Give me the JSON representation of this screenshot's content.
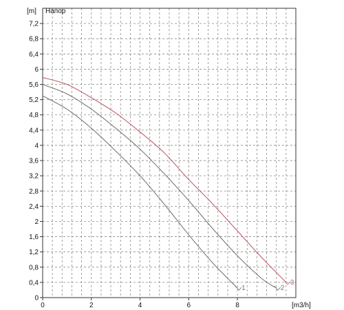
{
  "chart_data": {
    "type": "line",
    "title": "Напор",
    "ylabel": "[m]",
    "xlabel": "[m3/h]",
    "xlim": [
      0,
      10.4
    ],
    "ylim": [
      0,
      7.6
    ],
    "x_ticks": [
      0,
      2,
      4,
      6,
      8
    ],
    "x_tick_labels": [
      "0",
      "2",
      "4",
      "6",
      "8"
    ],
    "x_grid_step": 0.4,
    "y_ticks": [
      0,
      0.4,
      0.8,
      1.2,
      1.6,
      2,
      2.4,
      2.8,
      3.2,
      3.6,
      4,
      4.4,
      4.8,
      5.2,
      5.6,
      6,
      6.4,
      6.8,
      7.2
    ],
    "y_tick_labels": [
      "0",
      "0,4",
      "0,8",
      "1,2",
      "1,6",
      "2",
      "2,4",
      "2,8",
      "3,2",
      "3,6",
      "4",
      "4,4",
      "4,8",
      "5,2",
      "5,6",
      "6",
      "6,4",
      "6,8",
      "7,2"
    ],
    "grid": true,
    "series": [
      {
        "name": "1",
        "color": "#777777",
        "x": [
          0,
          1,
          2,
          3,
          4,
          5,
          6,
          7,
          8
        ],
        "y": [
          5.3,
          4.95,
          4.45,
          3.85,
          3.2,
          2.45,
          1.65,
          0.9,
          0.25
        ]
      },
      {
        "name": "2",
        "color": "#777777",
        "x": [
          0,
          1,
          2,
          3,
          4,
          5,
          6,
          7,
          8,
          9,
          9.6
        ],
        "y": [
          5.6,
          5.35,
          4.95,
          4.45,
          3.9,
          3.25,
          2.55,
          1.8,
          1.1,
          0.5,
          0.25
        ]
      },
      {
        "name": "3",
        "color": "#c0606a",
        "x": [
          0,
          1,
          2,
          3,
          4,
          5,
          6,
          7,
          8,
          9,
          10
        ],
        "y": [
          5.78,
          5.6,
          5.25,
          4.85,
          4.35,
          3.8,
          3.1,
          2.45,
          1.75,
          1.05,
          0.4
        ]
      }
    ]
  }
}
